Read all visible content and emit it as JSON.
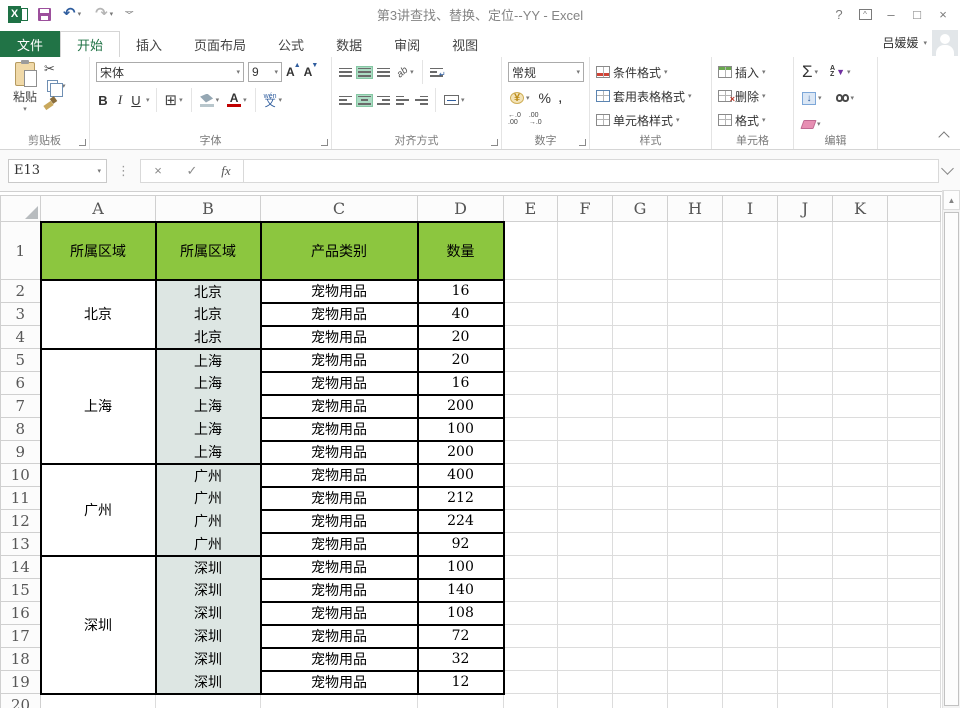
{
  "window": {
    "title": "第3讲查找、替换、定位--YY - Excel",
    "help": "?",
    "minimize": "–",
    "maximize": "□",
    "close": "×",
    "ribbon_display": "^"
  },
  "user": {
    "name": "吕媛媛"
  },
  "qat": {
    "excel_logo_letter": "X",
    "undo_glyph": "↶",
    "redo_glyph": "↷",
    "more_glyph": "﹀"
  },
  "tabs": {
    "file": "文件",
    "items": [
      "开始",
      "插入",
      "页面布局",
      "公式",
      "数据",
      "审阅",
      "视图"
    ],
    "active": "开始"
  },
  "ribbon": {
    "clipboard": {
      "label": "剪贴板",
      "paste": "粘贴"
    },
    "font": {
      "label": "字体",
      "name": "宋体",
      "size": "9",
      "bold": "B",
      "italic": "I",
      "underline": "U",
      "grow": "A",
      "shrink": "A",
      "border_glyph": "⊞",
      "phonetic_char": "文",
      "phonetic_pinyin": "wén"
    },
    "alignment": {
      "label": "对齐方式",
      "orientation": "ab",
      "wrap_arrow": "↵"
    },
    "number": {
      "label": "数字",
      "format": "常规",
      "currency": "¥",
      "percent": "%",
      "comma": ",",
      "inc_top": "←.0",
      "inc_bot": ".00",
      "dec_top": ".00",
      "dec_bot": "→.0"
    },
    "styles": {
      "label": "样式",
      "conditional": "条件格式",
      "format_table": "套用表格格式",
      "cell_styles": "单元格样式"
    },
    "cells": {
      "label": "单元格",
      "insert": "插入",
      "delete": "删除",
      "format": "格式",
      "delete_x": "×"
    },
    "editing": {
      "label": "编辑",
      "sigma": "Σ",
      "sort_a": "A",
      "sort_z": "Z",
      "funnel": "▼",
      "fill_arrow": "↓"
    }
  },
  "formula_bar": {
    "name_box": "E13",
    "cancel": "×",
    "enter": "✓",
    "fx": "fx",
    "value": ""
  },
  "sheet": {
    "col_letters": [
      "A",
      "B",
      "C",
      "D",
      "E",
      "F",
      "G",
      "H",
      "I",
      "J",
      "K"
    ],
    "headers": [
      "所属区域",
      "所属区域",
      "产品类别",
      "数量"
    ],
    "groups": [
      {
        "region": "北京",
        "rows": [
          {
            "city": "北京",
            "category": "宠物用品",
            "qty": "16"
          },
          {
            "city": "北京",
            "category": "宠物用品",
            "qty": "40"
          },
          {
            "city": "北京",
            "category": "宠物用品",
            "qty": "20"
          }
        ]
      },
      {
        "region": "上海",
        "rows": [
          {
            "city": "上海",
            "category": "宠物用品",
            "qty": "20"
          },
          {
            "city": "上海",
            "category": "宠物用品",
            "qty": "16"
          },
          {
            "city": "上海",
            "category": "宠物用品",
            "qty": "200"
          },
          {
            "city": "上海",
            "category": "宠物用品",
            "qty": "100"
          },
          {
            "city": "上海",
            "category": "宠物用品",
            "qty": "200"
          }
        ]
      },
      {
        "region": "广州",
        "rows": [
          {
            "city": "广州",
            "category": "宠物用品",
            "qty": "400"
          },
          {
            "city": "广州",
            "category": "宠物用品",
            "qty": "212"
          },
          {
            "city": "广州",
            "category": "宠物用品",
            "qty": "224"
          },
          {
            "city": "广州",
            "category": "宠物用品",
            "qty": "92"
          }
        ]
      },
      {
        "region": "深圳",
        "rows": [
          {
            "city": "深圳",
            "category": "宠物用品",
            "qty": "100"
          },
          {
            "city": "深圳",
            "category": "宠物用品",
            "qty": "140"
          },
          {
            "city": "深圳",
            "category": "宠物用品",
            "qty": "108"
          },
          {
            "city": "深圳",
            "category": "宠物用品",
            "qty": "72"
          },
          {
            "city": "深圳",
            "category": "宠物用品",
            "qty": "32"
          },
          {
            "city": "深圳",
            "category": "宠物用品",
            "qty": "12"
          }
        ]
      }
    ]
  },
  "colors": {
    "accent_green": "#217346",
    "table_header_fill": "#8cc63f",
    "city_column_fill": "#dde6e3",
    "align_active_fill": "#abdcc3",
    "save_icon_purple": "#9c4f9c",
    "undo_blue": "#2f5d9e",
    "font_color_red": "#c00000"
  }
}
